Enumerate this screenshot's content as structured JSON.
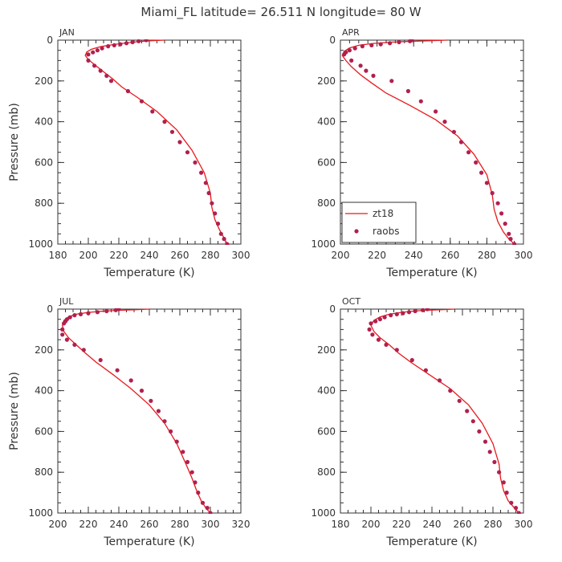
{
  "title": "Miami_FL   latitude= 26.511 N longitude= 80 W",
  "colors": {
    "model": "#e8191b",
    "obs": "#b0204e",
    "axis": "#333333"
  },
  "legend": {
    "model": "zt18",
    "obs": "raobs"
  },
  "chart_data": [
    {
      "type": "line",
      "panel_label": "JAN",
      "xlabel": "Temperature (K)",
      "ylabel": "Pressure (mb)",
      "xlim": [
        180,
        300
      ],
      "xticks": [
        180,
        200,
        220,
        240,
        260,
        280,
        300
      ],
      "ylim": [
        1000,
        0
      ],
      "yticks": [
        0,
        200,
        400,
        600,
        800,
        1000
      ],
      "yinverted": true,
      "series": [
        {
          "name": "zt18",
          "kind": "line",
          "x": [
            250,
            240,
            232,
            224,
            216,
            208,
            202,
            199,
            198,
            200,
            204,
            210,
            216,
            222,
            232,
            245,
            258,
            268,
            276,
            280,
            281,
            283,
            286,
            289,
            291
          ],
          "y": [
            0,
            3,
            8,
            14,
            22,
            32,
            45,
            58,
            75,
            95,
            120,
            155,
            190,
            230,
            280,
            350,
            440,
            540,
            650,
            750,
            820,
            880,
            930,
            970,
            1000
          ]
        },
        {
          "name": "raobs",
          "kind": "scatter",
          "x": [
            238,
            233,
            229,
            225,
            221,
            217,
            213,
            209,
            206,
            203,
            200,
            200,
            204,
            208,
            212,
            215,
            226,
            235,
            242,
            250,
            255,
            260,
            265,
            270,
            274,
            277,
            279,
            281,
            283,
            285,
            287,
            289,
            291
          ],
          "y": [
            0,
            5,
            10,
            15,
            20,
            25,
            30,
            40,
            50,
            60,
            70,
            100,
            125,
            150,
            175,
            200,
            250,
            300,
            350,
            400,
            450,
            500,
            550,
            600,
            650,
            700,
            750,
            800,
            850,
            900,
            950,
            975,
            1000
          ]
        }
      ]
    },
    {
      "type": "line",
      "panel_label": "APR",
      "xlabel": "Temperature (K)",
      "ylabel": "",
      "xlim": [
        200,
        300
      ],
      "xticks": [
        200,
        220,
        240,
        260,
        280,
        300
      ],
      "ylim": [
        1000,
        0
      ],
      "yticks": [
        0,
        200,
        400,
        600,
        800,
        1000
      ],
      "yinverted": true,
      "series": [
        {
          "name": "zt18",
          "kind": "line",
          "x": [
            258,
            248,
            238,
            228,
            218,
            210,
            205,
            202,
            201,
            203,
            206,
            211,
            217,
            225,
            238,
            252,
            264,
            273,
            280,
            283,
            284,
            286,
            289,
            292,
            295
          ],
          "y": [
            0,
            3,
            6,
            10,
            16,
            25,
            38,
            55,
            75,
            100,
            130,
            170,
            210,
            260,
            320,
            390,
            470,
            560,
            660,
            760,
            830,
            890,
            940,
            975,
            1000
          ]
        },
        {
          "name": "raobs",
          "kind": "scatter",
          "x": [
            239,
            238,
            232,
            227,
            222,
            217,
            212,
            208,
            205,
            203,
            202,
            206,
            211,
            214,
            218,
            228,
            237,
            244,
            252,
            257,
            262,
            266,
            270,
            274,
            277,
            280,
            283,
            286,
            288,
            290,
            292,
            293,
            295
          ],
          "y": [
            0,
            5,
            10,
            15,
            20,
            25,
            30,
            40,
            50,
            60,
            70,
            100,
            125,
            150,
            175,
            200,
            250,
            300,
            350,
            400,
            450,
            500,
            550,
            600,
            650,
            700,
            750,
            800,
            850,
            900,
            950,
            975,
            1000
          ]
        }
      ]
    },
    {
      "type": "line",
      "panel_label": "JUL",
      "xlabel": "Temperature (K)",
      "ylabel": "Pressure (mb)",
      "xlim": [
        200,
        320
      ],
      "xticks": [
        200,
        220,
        240,
        260,
        280,
        300,
        320
      ],
      "ylim": [
        1000,
        0
      ],
      "yticks": [
        0,
        200,
        400,
        600,
        800,
        1000
      ],
      "yinverted": true,
      "series": [
        {
          "name": "zt18",
          "kind": "line",
          "x": [
            260,
            250,
            240,
            230,
            220,
            212,
            207,
            204,
            203,
            204,
            207,
            212,
            218,
            225,
            236,
            248,
            260,
            270,
            278,
            284,
            288,
            291,
            294,
            297,
            300
          ],
          "y": [
            0,
            3,
            6,
            10,
            16,
            25,
            38,
            55,
            80,
            110,
            140,
            175,
            215,
            260,
            320,
            390,
            470,
            560,
            660,
            760,
            830,
            890,
            940,
            975,
            1000
          ]
        },
        {
          "name": "raobs",
          "kind": "scatter",
          "x": [
            240,
            238,
            232,
            226,
            220,
            215,
            211,
            208,
            206,
            205,
            204,
            203,
            203,
            206,
            211,
            217,
            228,
            239,
            248,
            255,
            261,
            266,
            270,
            274,
            278,
            282,
            285,
            288,
            290,
            292,
            295,
            298,
            300
          ],
          "y": [
            0,
            5,
            10,
            15,
            20,
            25,
            30,
            40,
            50,
            60,
            70,
            100,
            125,
            150,
            175,
            200,
            250,
            300,
            350,
            400,
            450,
            500,
            550,
            600,
            650,
            700,
            750,
            800,
            850,
            900,
            950,
            975,
            1000
          ]
        }
      ]
    },
    {
      "type": "line",
      "panel_label": "OCT",
      "xlabel": "Temperature (K)",
      "ylabel": "",
      "xlim": [
        180,
        300
      ],
      "xticks": [
        180,
        200,
        220,
        240,
        260,
        280,
        300
      ],
      "ylim": [
        1000,
        0
      ],
      "yticks": [
        0,
        200,
        400,
        600,
        800,
        1000
      ],
      "yinverted": true,
      "series": [
        {
          "name": "zt18",
          "kind": "line",
          "x": [
            255,
            245,
            236,
            228,
            220,
            212,
            206,
            202,
            200,
            202,
            206,
            212,
            218,
            226,
            238,
            252,
            264,
            273,
            280,
            284,
            285,
            287,
            290,
            294,
            297
          ],
          "y": [
            0,
            3,
            6,
            10,
            16,
            25,
            38,
            55,
            80,
            110,
            140,
            175,
            215,
            260,
            320,
            390,
            470,
            560,
            660,
            760,
            830,
            890,
            940,
            975,
            1000
          ]
        },
        {
          "name": "raobs",
          "kind": "scatter",
          "x": [
            237,
            234,
            229,
            225,
            221,
            217,
            213,
            209,
            206,
            203,
            200,
            199,
            201,
            205,
            210,
            217,
            227,
            236,
            245,
            252,
            258,
            263,
            267,
            271,
            275,
            278,
            281,
            284,
            287,
            289,
            292,
            295,
            297
          ],
          "y": [
            0,
            5,
            10,
            15,
            20,
            25,
            30,
            40,
            50,
            60,
            70,
            100,
            125,
            150,
            175,
            200,
            250,
            300,
            350,
            400,
            450,
            500,
            550,
            600,
            650,
            700,
            750,
            800,
            850,
            900,
            950,
            975,
            1000
          ]
        }
      ]
    }
  ]
}
